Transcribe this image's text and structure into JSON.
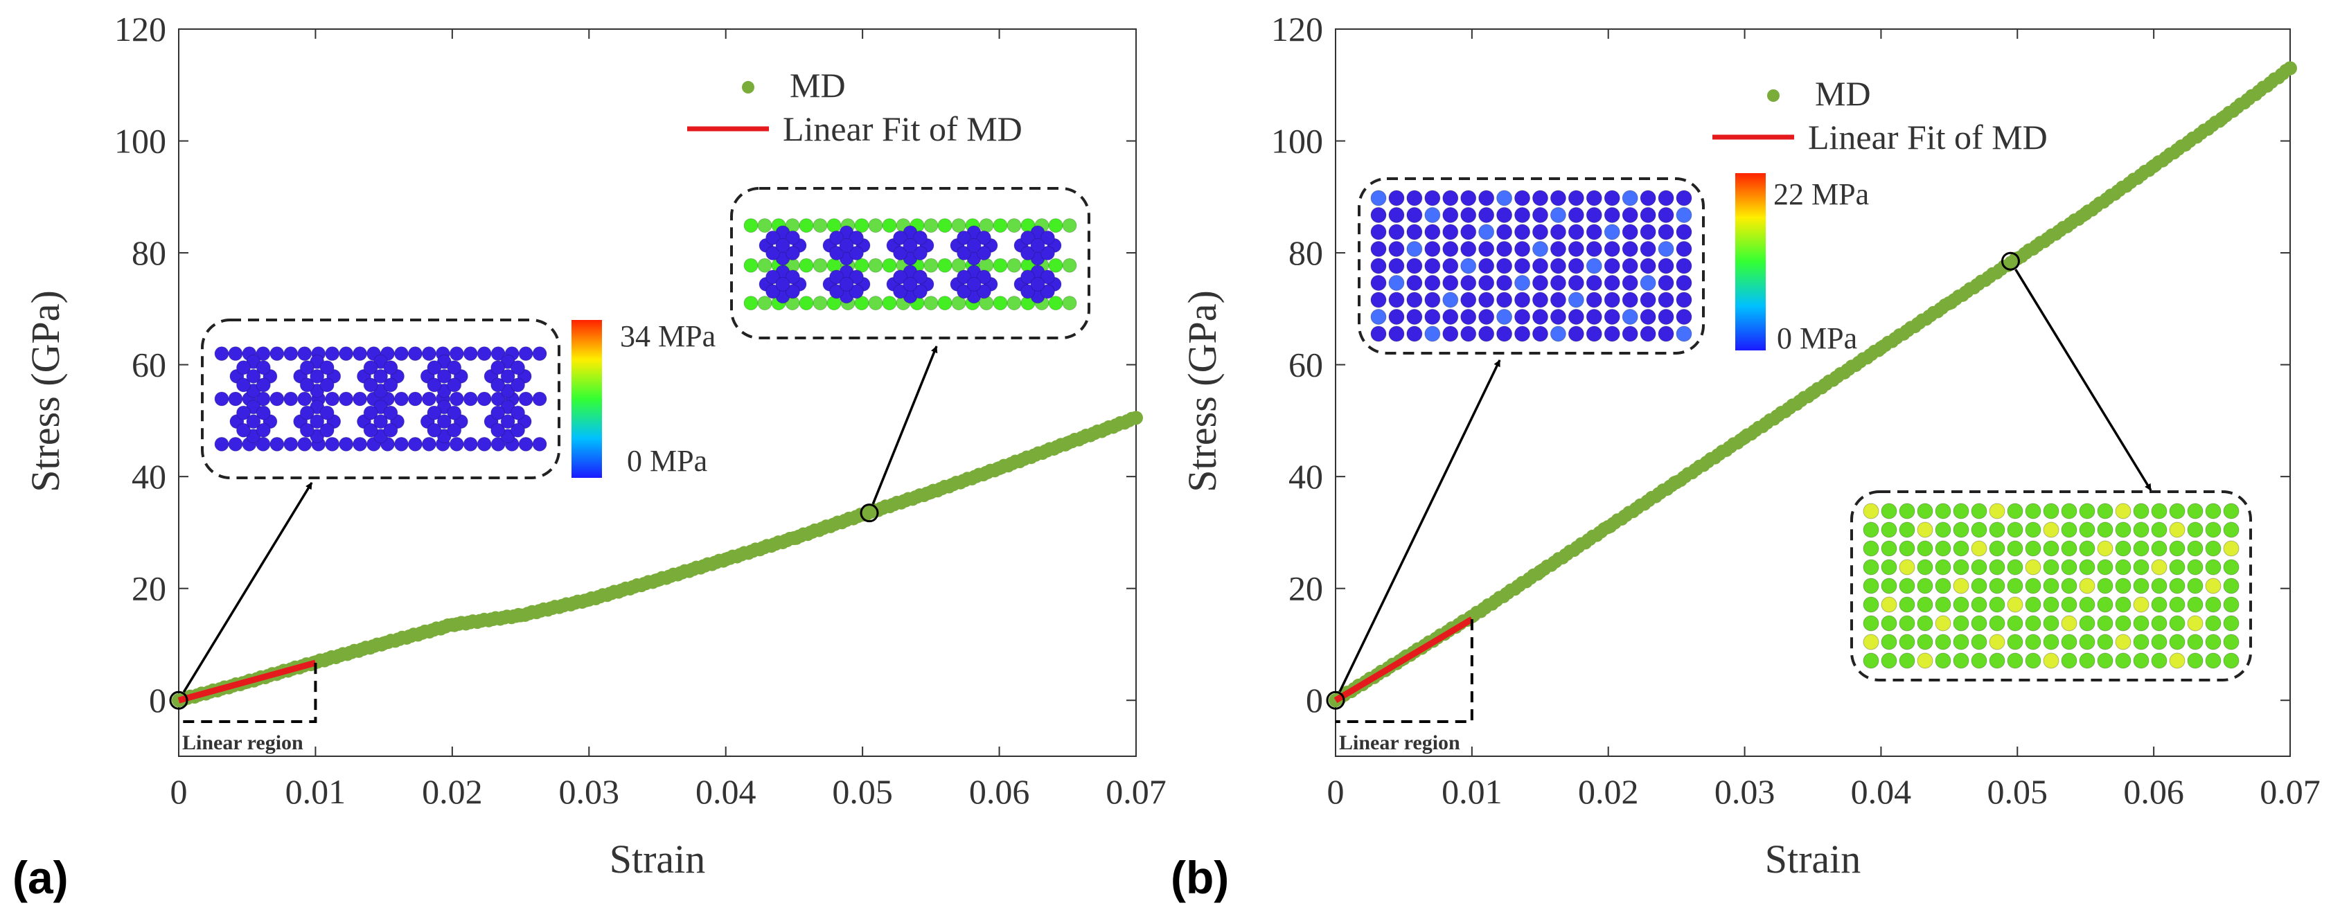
{
  "chart_data": [
    {
      "panel": "(a)",
      "type": "scatter",
      "xlabel": "Strain",
      "ylabel": "Stress (GPa)",
      "xlim": [
        0,
        0.07
      ],
      "ylim": [
        -10,
        120
      ],
      "xticks": [
        0,
        0.01,
        0.02,
        0.03,
        0.04,
        0.05,
        0.06,
        0.07
      ],
      "xtick_labels": [
        "0",
        "0.01",
        "0.02",
        "0.03",
        "0.04",
        "0.05",
        "0.06",
        "0.07"
      ],
      "yticks": [
        0,
        20,
        40,
        60,
        80,
        100,
        120
      ],
      "ytick_labels": [
        "0",
        "20",
        "40",
        "60",
        "80",
        "100",
        "120"
      ],
      "legend": [
        "MD",
        "Linear Fit of MD"
      ],
      "series": [
        {
          "name": "MD",
          "color": "#7aac3a",
          "x": [
            0,
            0.005,
            0.01,
            0.015,
            0.02,
            0.025,
            0.03,
            0.035,
            0.04,
            0.045,
            0.05,
            0.055,
            0.06,
            0.065,
            0.07
          ],
          "y": [
            0,
            3.3,
            6.8,
            10.2,
            13.5,
            15.2,
            18.0,
            21.5,
            25.2,
            29.0,
            33.2,
            37.2,
            41.5,
            46.0,
            50.5
          ]
        },
        {
          "name": "Linear Fit of MD",
          "color": "#e41a1c",
          "x": [
            0,
            0.01
          ],
          "y": [
            0,
            6.7
          ]
        }
      ],
      "annotations": {
        "linear_region": "Linear region",
        "linear_region_x": [
          0,
          0.01
        ],
        "circles": [
          {
            "x": 0,
            "y": 0
          },
          {
            "x": 0.0505,
            "y": 33.5
          }
        ],
        "colorbar": {
          "max_label": "34 MPa",
          "min_label": "0 MPa"
        }
      }
    },
    {
      "panel": "(b)",
      "type": "scatter",
      "xlabel": "Strain",
      "ylabel": "Stress (GPa)",
      "xlim": [
        0,
        0.07
      ],
      "ylim": [
        -10,
        120
      ],
      "xticks": [
        0,
        0.01,
        0.02,
        0.03,
        0.04,
        0.05,
        0.06,
        0.07
      ],
      "xtick_labels": [
        "0",
        "0.01",
        "0.02",
        "0.03",
        "0.04",
        "0.05",
        "0.06",
        "0.07"
      ],
      "yticks": [
        0,
        20,
        40,
        60,
        80,
        100,
        120
      ],
      "ytick_labels": [
        "0",
        "20",
        "40",
        "60",
        "80",
        "100",
        "120"
      ],
      "legend": [
        "MD",
        "Linear Fit of MD"
      ],
      "series": [
        {
          "name": "MD",
          "color": "#7aac3a",
          "x": [
            0,
            0.005,
            0.01,
            0.015,
            0.02,
            0.025,
            0.03,
            0.035,
            0.04,
            0.045,
            0.05,
            0.055,
            0.06,
            0.065,
            0.07
          ],
          "y": [
            0,
            7.5,
            15.0,
            23.0,
            31.0,
            39.0,
            47.0,
            55.0,
            63.0,
            71.0,
            79.0,
            87.0,
            95.5,
            104.0,
            113.0
          ]
        },
        {
          "name": "Linear Fit of MD",
          "color": "#e41a1c",
          "x": [
            0,
            0.01
          ],
          "y": [
            0,
            14.5
          ]
        }
      ],
      "annotations": {
        "linear_region": "Linear region",
        "linear_region_x": [
          0,
          0.01
        ],
        "circles": [
          {
            "x": 0,
            "y": 0
          },
          {
            "x": 0.0495,
            "y": 78.5
          }
        ],
        "colorbar": {
          "max_label": "22 MPa",
          "min_label": "0 MPa"
        }
      }
    }
  ]
}
